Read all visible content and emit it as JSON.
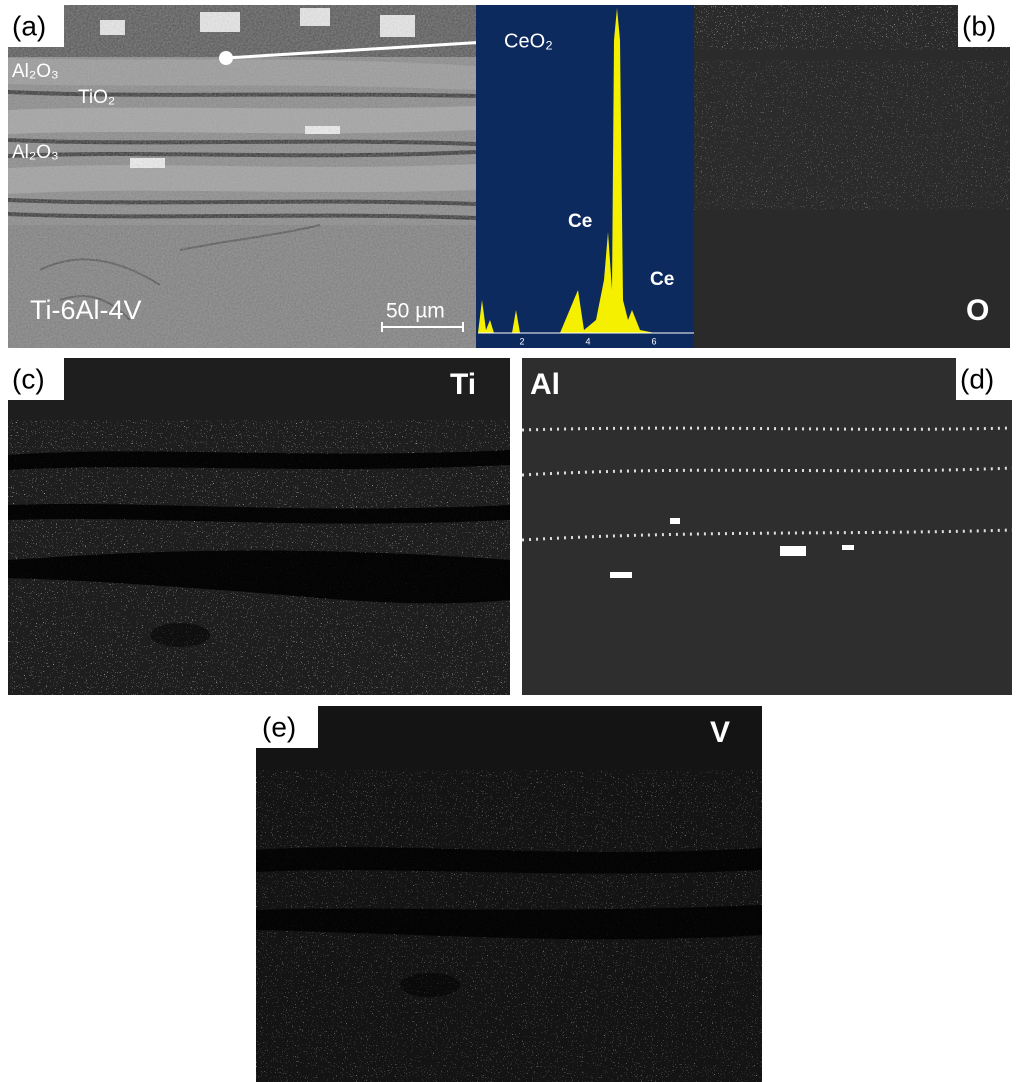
{
  "panel_a": {
    "label": "(a)",
    "layers": [
      "Al₂O₃",
      "TiO₂",
      "Al₂O₃"
    ],
    "substrate": "Ti-6Al-4V",
    "scale_bar": "50 µm"
  },
  "spectrum": {
    "phase": "CeO₂",
    "peaks": [
      "Ce",
      "Ce"
    ],
    "xticks": [
      2,
      4,
      6
    ]
  },
  "panel_b": {
    "label": "(b)",
    "element": "O"
  },
  "panel_c": {
    "label": "(c)",
    "element": "Ti"
  },
  "panel_d": {
    "label": "(d)",
    "element": "Al"
  },
  "panel_e": {
    "label": "(e)",
    "element": "V"
  }
}
